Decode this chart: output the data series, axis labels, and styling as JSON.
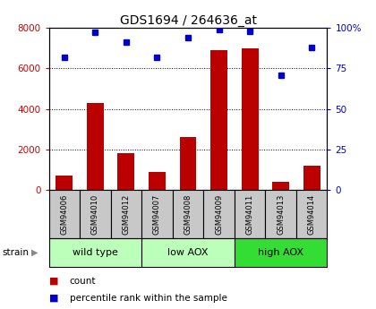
{
  "title": "GDS1694 / 264636_at",
  "samples": [
    "GSM94006",
    "GSM94010",
    "GSM94012",
    "GSM94007",
    "GSM94008",
    "GSM94009",
    "GSM94011",
    "GSM94013",
    "GSM94014"
  ],
  "counts": [
    700,
    4300,
    1800,
    900,
    2600,
    6900,
    7000,
    400,
    1200
  ],
  "percentiles": [
    82,
    97,
    91,
    82,
    94,
    99,
    98,
    71,
    88
  ],
  "groups": [
    {
      "label": "wild type",
      "start": 0,
      "end": 3,
      "color": "#bbffbb"
    },
    {
      "label": "low AOX",
      "start": 3,
      "end": 6,
      "color": "#bbffbb"
    },
    {
      "label": "high AOX",
      "start": 6,
      "end": 9,
      "color": "#33dd33"
    }
  ],
  "bar_color": "#bb0000",
  "dot_color": "#0000cc",
  "ylim_left": [
    0,
    8000
  ],
  "ylim_right": [
    0,
    100
  ],
  "yticks_left": [
    0,
    2000,
    4000,
    6000,
    8000
  ],
  "ytick_labels_left": [
    "0",
    "2000",
    "4000",
    "6000",
    "8000"
  ],
  "yticks_right": [
    0,
    25,
    50,
    75,
    100
  ],
  "ytick_labels_right": [
    "0",
    "25",
    "50",
    "75",
    "100%"
  ],
  "grid_values": [
    2000,
    4000,
    6000
  ],
  "left_axis_color": "#cc0000",
  "right_axis_color": "#0000cc",
  "strain_label": "strain",
  "legend_count": "count",
  "legend_percentile": "percentile rank within the sample",
  "gray_box_color": "#c8c8c8",
  "title_fontsize": 10,
  "tick_fontsize": 7.5,
  "sample_fontsize": 6,
  "group_fontsize": 8
}
